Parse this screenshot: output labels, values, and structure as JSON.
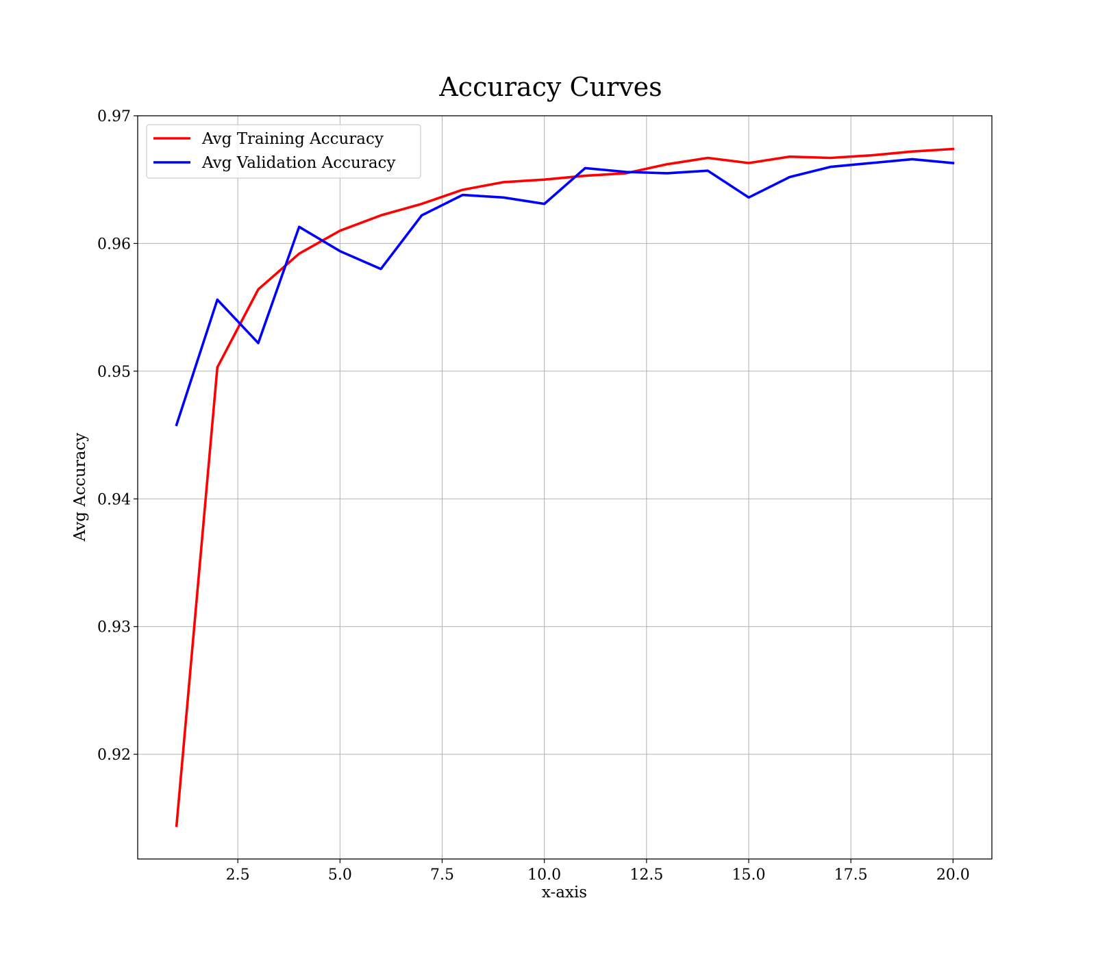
{
  "chart_data": {
    "type": "line",
    "title": "Accuracy Curves",
    "xlabel": "x-axis",
    "ylabel": "Avg Accuracy",
    "xlim": [
      0.05,
      20.95
    ],
    "ylim": [
      0.9118,
      0.97
    ],
    "xticks": [
      2.5,
      5.0,
      7.5,
      10.0,
      12.5,
      15.0,
      17.5,
      20.0
    ],
    "xtick_labels": [
      "2.5",
      "5.0",
      "7.5",
      "10.0",
      "12.5",
      "15.0",
      "17.5",
      "20.0"
    ],
    "yticks": [
      0.92,
      0.93,
      0.94,
      0.95,
      0.96,
      0.97
    ],
    "ytick_labels": [
      "0.92",
      "0.93",
      "0.94",
      "0.95",
      "0.96",
      "0.97"
    ],
    "grid": true,
    "legend_position": "upper-left",
    "x": [
      1,
      2,
      3,
      4,
      5,
      6,
      7,
      8,
      9,
      10,
      11,
      12,
      13,
      14,
      15,
      16,
      17,
      18,
      19,
      20
    ],
    "series": [
      {
        "name": "Avg Training Accuracy",
        "color": "#ff0000",
        "values": [
          0.9144,
          0.9503,
          0.9564,
          0.9592,
          0.961,
          0.9622,
          0.9631,
          0.9642,
          0.9648,
          0.965,
          0.9653,
          0.9655,
          0.9662,
          0.9667,
          0.9663,
          0.9668,
          0.9667,
          0.9669,
          0.9672,
          0.9674
        ]
      },
      {
        "name": "Avg Validation Accuracy",
        "color": "#0000ff",
        "values": [
          0.9458,
          0.9556,
          0.9522,
          0.9613,
          0.9594,
          0.958,
          0.9622,
          0.9638,
          0.9636,
          0.9631,
          0.9659,
          0.9656,
          0.9655,
          0.9657,
          0.9636,
          0.9652,
          0.966,
          0.9663,
          0.9666,
          0.9663
        ]
      }
    ]
  }
}
